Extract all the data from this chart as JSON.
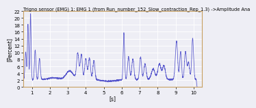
{
  "title": "Trigno sensor (EMG) 1: EMG 1 (from Run_number_152_Slow_contraction_Rep_1.3) ->Amplitude Ana",
  "xlabel": "[s]",
  "ylabel": "[Percent]",
  "xlim": [
    0.5,
    10.45
  ],
  "ylim": [
    0,
    22
  ],
  "yticks": [
    0,
    2,
    4,
    6,
    8,
    10,
    12,
    14,
    16,
    18,
    20,
    22
  ],
  "xticks": [
    1,
    2,
    3,
    4,
    5,
    6,
    7,
    8,
    9,
    10
  ],
  "line_color": "#5555cc",
  "bg_color": "#eeeef5",
  "plot_bg": "#eeeef5",
  "title_fontsize": 4.8,
  "label_fontsize": 5.5,
  "tick_fontsize": 5.0
}
